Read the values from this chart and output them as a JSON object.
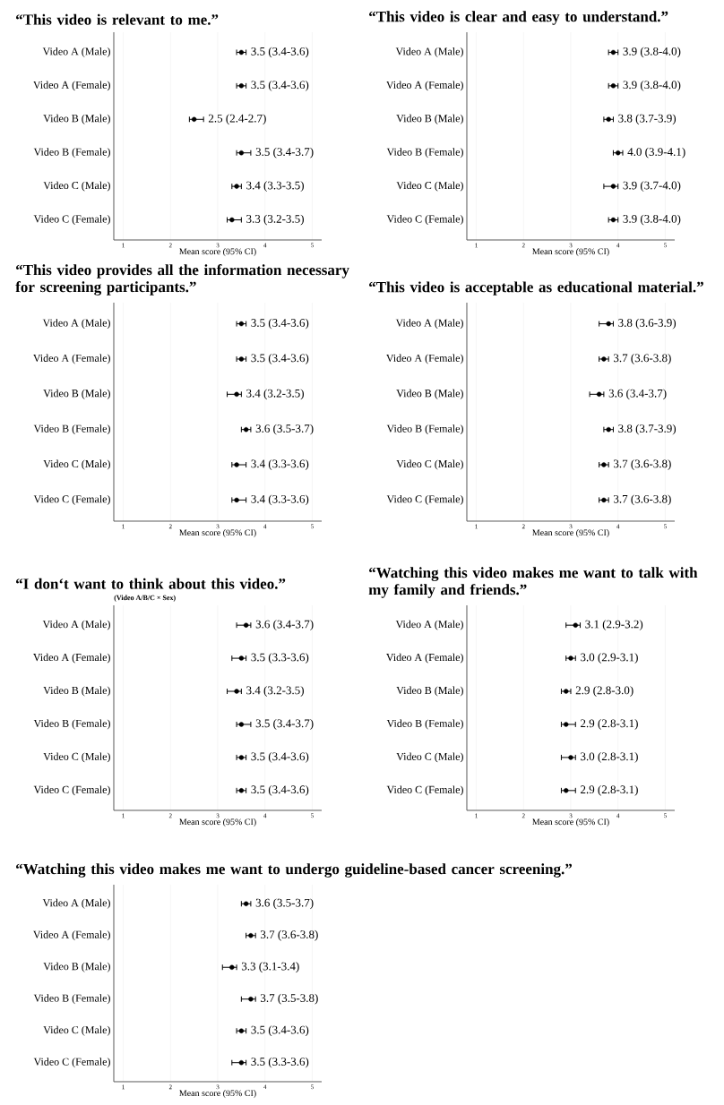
{
  "chart_data": [
    {
      "type": "scatter",
      "orientation": "horizontal",
      "title": "“This video is relevant to me.”",
      "xlabel": "Mean score (95% CI)",
      "categories": [
        "Video A (Male)",
        "Video A (Female)",
        "Video B (Male)",
        "Video B (Female)",
        "Video C (Male)",
        "Video C (Female)"
      ],
      "values": [
        3.5,
        3.5,
        2.5,
        3.5,
        3.4,
        3.3
      ],
      "errors": [
        [
          3.4,
          3.6
        ],
        [
          3.4,
          3.6
        ],
        [
          2.4,
          2.7
        ],
        [
          3.4,
          3.7
        ],
        [
          3.3,
          3.5
        ],
        [
          3.2,
          3.5
        ]
      ],
      "value_labels": [
        "3.5 (3.4-3.6)",
        "3.5 (3.4-3.6)",
        "2.5 (2.4-2.7)",
        "3.5 (3.4-3.7)",
        "3.4 (3.3-3.5)",
        "3.3 (3.2-3.5)"
      ],
      "color": "#000000",
      "xlim": [
        0.8,
        5.2
      ],
      "xticks": [
        1,
        2,
        3,
        4,
        5
      ],
      "grid": "x"
    },
    {
      "type": "scatter",
      "orientation": "horizontal",
      "title": "“This video is clear and easy to understand.”",
      "xlabel": "Mean score (95% CI)",
      "categories": [
        "Video A (Male)",
        "Video A (Female)",
        "Video B (Male)",
        "Video B (Female)",
        "Video C (Male)",
        "Video C (Female)"
      ],
      "values": [
        3.9,
        3.9,
        3.8,
        4.0,
        3.9,
        3.9
      ],
      "errors": [
        [
          3.8,
          4.0
        ],
        [
          3.8,
          4.0
        ],
        [
          3.7,
          3.9
        ],
        [
          3.9,
          4.1
        ],
        [
          3.7,
          4.0
        ],
        [
          3.8,
          4.0
        ]
      ],
      "value_labels": [
        "3.9 (3.8-4.0)",
        "3.9 (3.8-4.0)",
        "3.8 (3.7-3.9)",
        "4.0 (3.9-4.1)",
        "3.9 (3.7-4.0)",
        "3.9 (3.8-4.0)"
      ],
      "color": "#000000",
      "xlim": [
        0.8,
        5.2
      ],
      "xticks": [
        1,
        2,
        3,
        4,
        5
      ],
      "grid": "x"
    },
    {
      "type": "scatter",
      "orientation": "horizontal",
      "title": "“This video provides all the information necessary for screening participants.”",
      "xlabel": "Mean score (95% CI)",
      "categories": [
        "Video A (Male)",
        "Video A (Female)",
        "Video B (Male)",
        "Video B (Female)",
        "Video C (Male)",
        "Video C (Female)"
      ],
      "values": [
        3.5,
        3.5,
        3.4,
        3.6,
        3.4,
        3.4
      ],
      "errors": [
        [
          3.4,
          3.6
        ],
        [
          3.4,
          3.6
        ],
        [
          3.2,
          3.5
        ],
        [
          3.5,
          3.7
        ],
        [
          3.3,
          3.6
        ],
        [
          3.3,
          3.6
        ]
      ],
      "value_labels": [
        "3.5 (3.4-3.6)",
        "3.5 (3.4-3.6)",
        "3.4 (3.2-3.5)",
        "3.6 (3.5-3.7)",
        "3.4 (3.3-3.6)",
        "3.4 (3.3-3.6)"
      ],
      "color": "#000000",
      "xlim": [
        0.8,
        5.2
      ],
      "xticks": [
        1,
        2,
        3,
        4,
        5
      ],
      "grid": "x"
    },
    {
      "type": "scatter",
      "orientation": "horizontal",
      "title": "“This video is acceptable as educational material.”",
      "xlabel": "Mean score (95% CI)",
      "categories": [
        "Video A (Male)",
        "Video A (Female)",
        "Video B (Male)",
        "Video B (Female)",
        "Video C (Male)",
        "Video C (Female)"
      ],
      "values": [
        3.8,
        3.7,
        3.6,
        3.8,
        3.7,
        3.7
      ],
      "errors": [
        [
          3.6,
          3.9
        ],
        [
          3.6,
          3.8
        ],
        [
          3.4,
          3.7
        ],
        [
          3.7,
          3.9
        ],
        [
          3.6,
          3.8
        ],
        [
          3.6,
          3.8
        ]
      ],
      "value_labels": [
        "3.8 (3.6-3.9)",
        "3.7 (3.6-3.8)",
        "3.6 (3.4-3.7)",
        "3.8 (3.7-3.9)",
        "3.7 (3.6-3.8)",
        "3.7 (3.6-3.8)"
      ],
      "color": "#000000",
      "xlim": [
        0.8,
        5.2
      ],
      "xticks": [
        1,
        2,
        3,
        4,
        5
      ],
      "grid": "x"
    },
    {
      "type": "scatter",
      "orientation": "horizontal",
      "title": "“I don‘t want to think about this video.”",
      "annotations": [
        "(Video A/B/C × Sex)"
      ],
      "xlabel": "Mean score (95% CI)",
      "categories": [
        "Video A (Male)",
        "Video A (Female)",
        "Video B (Male)",
        "Video B (Female)",
        "Video C (Male)",
        "Video C (Female)"
      ],
      "values": [
        3.6,
        3.5,
        3.4,
        3.5,
        3.5,
        3.5
      ],
      "errors": [
        [
          3.4,
          3.7
        ],
        [
          3.3,
          3.6
        ],
        [
          3.2,
          3.5
        ],
        [
          3.4,
          3.7
        ],
        [
          3.4,
          3.6
        ],
        [
          3.4,
          3.6
        ]
      ],
      "value_labels": [
        "3.6 (3.4-3.7)",
        "3.5 (3.3-3.6)",
        "3.4 (3.2-3.5)",
        "3.5 (3.4-3.7)",
        "3.5 (3.4-3.6)",
        "3.5 (3.4-3.6)"
      ],
      "color": "#000000",
      "xlim": [
        0.8,
        5.2
      ],
      "xticks": [
        1,
        2,
        3,
        4,
        5
      ],
      "grid": "x"
    },
    {
      "type": "scatter",
      "orientation": "horizontal",
      "title": "“Watching this video makes me want to talk with my family and friends.”",
      "xlabel": "Mean score (95% CI)",
      "categories": [
        "Video A (Male)",
        "Video A (Female)",
        "Video B (Male)",
        "Video B (Female)",
        "Video C (Male)",
        "Video C (Female)"
      ],
      "values": [
        3.1,
        3.0,
        2.9,
        2.9,
        3.0,
        2.9
      ],
      "errors": [
        [
          2.9,
          3.2
        ],
        [
          2.9,
          3.1
        ],
        [
          2.8,
          3.0
        ],
        [
          2.8,
          3.1
        ],
        [
          2.8,
          3.1
        ],
        [
          2.8,
          3.1
        ]
      ],
      "value_labels": [
        "3.1 (2.9-3.2)",
        "3.0 (2.9-3.1)",
        "2.9 (2.8-3.0)",
        "2.9 (2.8-3.1)",
        "3.0 (2.8-3.1)",
        "2.9 (2.8-3.1)"
      ],
      "color": "#000000",
      "xlim": [
        0.8,
        5.2
      ],
      "xticks": [
        1,
        2,
        3,
        4,
        5
      ],
      "grid": "x"
    },
    {
      "type": "scatter",
      "orientation": "horizontal",
      "title": "“Watching this video makes me want to undergo guideline-based cancer screening.”",
      "xlabel": "Mean score (95% CI)",
      "categories": [
        "Video A (Male)",
        "Video A (Female)",
        "Video B (Male)",
        "Video B (Female)",
        "Video C (Male)",
        "Video C (Female)"
      ],
      "values": [
        3.6,
        3.7,
        3.3,
        3.7,
        3.5,
        3.5
      ],
      "errors": [
        [
          3.5,
          3.7
        ],
        [
          3.6,
          3.8
        ],
        [
          3.1,
          3.4
        ],
        [
          3.5,
          3.8
        ],
        [
          3.4,
          3.6
        ],
        [
          3.3,
          3.6
        ]
      ],
      "value_labels": [
        "3.6 (3.5-3.7)",
        "3.7 (3.6-3.8)",
        "3.3 (3.1-3.4)",
        "3.7 (3.5-3.8)",
        "3.5 (3.4-3.6)",
        "3.5 (3.3-3.6)"
      ],
      "color": "#000000",
      "xlim": [
        0.8,
        5.2
      ],
      "xticks": [
        1,
        2,
        3,
        4,
        5
      ],
      "grid": "x"
    }
  ]
}
